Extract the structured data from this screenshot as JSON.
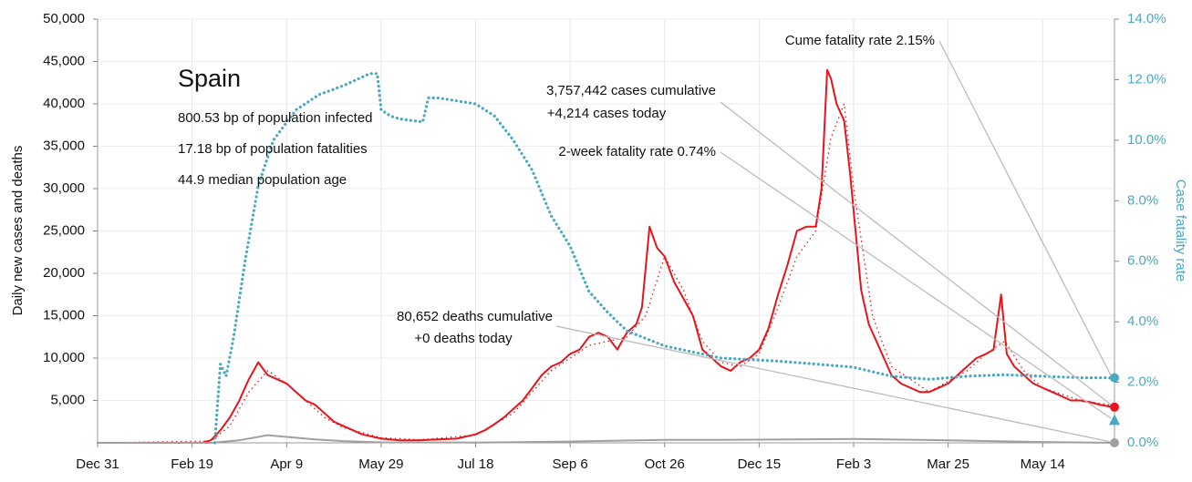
{
  "chart_data": {
    "type": "line",
    "info": [
      "Spain",
      "800.53 bp of population infected",
      "17.18 bp of population fatalities",
      "44.9 median population age"
    ],
    "annotations": [
      "Cume fatality rate 2.15%",
      "3,757,442 cases cumulative",
      "+4,214 cases today",
      "2-week fatality rate 0.74%",
      "80,652 deaths cumulative",
      "+0 deaths today"
    ],
    "ylabel": "Daily new cases and deaths",
    "y2label": "Case fatality rate",
    "xlim": [
      0,
      538
    ],
    "xticks": [
      {
        "value": 0,
        "label": "Dec 31"
      },
      {
        "value": 50,
        "label": "Feb 19"
      },
      {
        "value": 100,
        "label": "Apr 9"
      },
      {
        "value": 150,
        "label": "May 29"
      },
      {
        "value": 200,
        "label": "Jul 18"
      },
      {
        "value": 250,
        "label": "Sep 6"
      },
      {
        "value": 300,
        "label": "Oct 26"
      },
      {
        "value": 350,
        "label": "Dec 15"
      },
      {
        "value": 400,
        "label": "Feb 3"
      },
      {
        "value": 450,
        "label": "Mar 25"
      },
      {
        "value": 500,
        "label": "May 14"
      }
    ],
    "ylim": [
      0,
      50000
    ],
    "yticks": [
      {
        "value": 5000,
        "label": "5,000"
      },
      {
        "value": 10000,
        "label": "10,000"
      },
      {
        "value": 15000,
        "label": "15,000"
      },
      {
        "value": 20000,
        "label": "20,000"
      },
      {
        "value": 25000,
        "label": "25,000"
      },
      {
        "value": 30000,
        "label": "30,000"
      },
      {
        "value": 35000,
        "label": "35,000"
      },
      {
        "value": 40000,
        "label": "40,000"
      },
      {
        "value": 45000,
        "label": "45,000"
      },
      {
        "value": 50000,
        "label": "50,000"
      }
    ],
    "y2lim": [
      0,
      14
    ],
    "y2ticks": [
      {
        "value": 0,
        "label": "0.0%"
      },
      {
        "value": 2,
        "label": "2.0%"
      },
      {
        "value": 4,
        "label": "4.0%"
      },
      {
        "value": 6,
        "label": "6.0%"
      },
      {
        "value": 8,
        "label": "8.0%"
      },
      {
        "value": 10,
        "label": "10.0%"
      },
      {
        "value": 12,
        "label": "12.0%"
      },
      {
        "value": 14,
        "label": "14.0%"
      }
    ],
    "grid": true,
    "two_week_marker": {
      "value": 0.74,
      "color": "#4aa9c0",
      "axis": "y2"
    },
    "series": [
      {
        "color": "#e8141c",
        "style": "solid",
        "end_marker": true,
        "x": [
          0,
          55,
          60,
          65,
          70,
          75,
          80,
          85,
          90,
          95,
          100,
          105,
          110,
          115,
          120,
          125,
          130,
          140,
          150,
          160,
          170,
          180,
          190,
          200,
          205,
          210,
          215,
          220,
          225,
          230,
          235,
          240,
          245,
          250,
          255,
          260,
          265,
          270,
          275,
          280,
          285,
          288,
          292,
          296,
          300,
          305,
          310,
          315,
          320,
          325,
          330,
          335,
          340,
          345,
          350,
          355,
          360,
          365,
          370,
          375,
          380,
          383,
          386,
          388,
          391,
          395,
          398,
          401,
          404,
          408,
          412,
          416,
          420,
          425,
          430,
          435,
          440,
          445,
          450,
          455,
          460,
          465,
          470,
          474,
          478,
          481,
          485,
          490,
          495,
          500,
          505,
          510,
          515,
          520,
          525,
          530,
          535,
          538
        ],
        "values": [
          0,
          0,
          300,
          1500,
          3000,
          5000,
          7500,
          9500,
          8000,
          7500,
          7000,
          6000,
          5000,
          4500,
          3500,
          2500,
          2000,
          1000,
          500,
          300,
          300,
          400,
          500,
          1000,
          1500,
          2200,
          3000,
          4000,
          5000,
          6500,
          8000,
          9000,
          9500,
          10500,
          11000,
          12500,
          13000,
          12500,
          11000,
          13000,
          14000,
          16000,
          25500,
          23000,
          22000,
          19000,
          17000,
          15000,
          11000,
          10000,
          9000,
          8500,
          9500,
          10000,
          11000,
          13500,
          17500,
          21000,
          25000,
          25500,
          25500,
          30000,
          44000,
          43000,
          40000,
          38000,
          32000,
          25000,
          18000,
          14000,
          12000,
          10000,
          8000,
          7000,
          6500,
          6000,
          6000,
          6500,
          7000,
          8000,
          9000,
          10000,
          10500,
          11000,
          17500,
          10500,
          9000,
          8000,
          7000,
          6500,
          6000,
          5500,
          5000,
          5000,
          4800,
          4500,
          4300,
          4214
        ]
      },
      {
        "color": "#e8141c",
        "style": "dotted",
        "x": [
          0,
          60,
          70,
          80,
          90,
          100,
          110,
          120,
          130,
          150,
          170,
          200,
          220,
          240,
          260,
          280,
          290,
          300,
          310,
          320,
          330,
          340,
          350,
          360,
          370,
          380,
          388,
          395,
          400,
          410,
          420,
          440,
          460,
          470,
          480,
          490,
          500,
          520,
          538
        ],
        "values": [
          0,
          200,
          2000,
          6000,
          8500,
          7000,
          5000,
          3000,
          1800,
          600,
          350,
          900,
          3500,
          8500,
          11500,
          12500,
          15000,
          22000,
          18000,
          12000,
          9500,
          9000,
          10500,
          16000,
          22000,
          25000,
          36000,
          40000,
          30000,
          15000,
          9000,
          6000,
          8500,
          10500,
          12000,
          8500,
          6500,
          5000,
          4400
        ]
      },
      {
        "color": "#a0a0a0",
        "style": "solid",
        "end_marker": true,
        "x": [
          0,
          60,
          75,
          90,
          100,
          115,
          130,
          150,
          200,
          250,
          300,
          330,
          400,
          450,
          500,
          538
        ],
        "values": [
          0,
          0,
          300,
          900,
          700,
          400,
          200,
          50,
          30,
          150,
          350,
          350,
          450,
          300,
          100,
          0
        ]
      },
      {
        "color": "#4aa9c0",
        "style": "dotted",
        "axis": "y2",
        "end_marker": true,
        "x": [
          62,
          65,
          68,
          72,
          78,
          85,
          93,
          105,
          117,
          130,
          144,
          148,
          150,
          155,
          160,
          172,
          175,
          180,
          200,
          210,
          220,
          230,
          240,
          250,
          260,
          270,
          280,
          300,
          330,
          360,
          380,
          400,
          420,
          440,
          460,
          480,
          500,
          520,
          538
        ],
        "values": [
          0,
          2.6,
          2.2,
          3.5,
          6,
          8.5,
          10,
          11,
          11.5,
          11.8,
          12.2,
          12.2,
          11,
          10.8,
          10.7,
          10.6,
          11.4,
          11.4,
          11.2,
          10.8,
          10,
          9,
          7.5,
          6.5,
          5,
          4.3,
          3.7,
          3.2,
          2.8,
          2.7,
          2.6,
          2.5,
          2.2,
          2.1,
          2.2,
          2.25,
          2.2,
          2.15,
          2.15
        ]
      }
    ]
  }
}
